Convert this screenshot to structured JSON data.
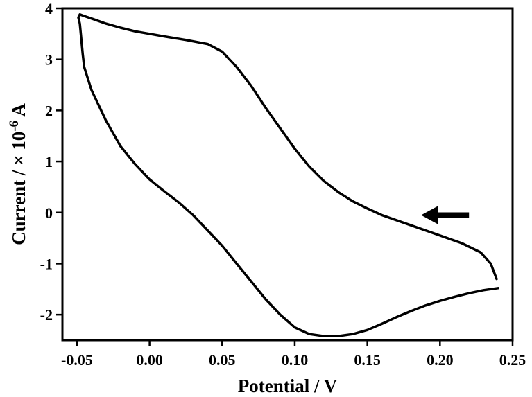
{
  "chart_data": {
    "type": "line",
    "xlabel": "Potential / V",
    "ylabel": {
      "prefix": "Current / × 10",
      "exponent": "-6",
      "suffix": " A"
    },
    "xlim": [
      -0.06,
      0.25
    ],
    "ylim": [
      -2.5,
      4
    ],
    "x_ticks": [
      -0.05,
      0.0,
      0.05,
      0.1,
      0.15,
      0.2,
      0.25
    ],
    "x_tick_labels": [
      "-0.05",
      "0.00",
      "0.05",
      "0.10",
      "0.15",
      "0.20",
      "0.25"
    ],
    "y_ticks": [
      -2,
      -1,
      0,
      1,
      2,
      3,
      4
    ],
    "y_tick_labels": [
      "-2",
      "-1",
      "0",
      "1",
      "2",
      "3",
      "4"
    ],
    "grid": false,
    "annotations": [
      {
        "type": "arrow",
        "direction": "left",
        "x_tail": 0.22,
        "x_head": 0.187,
        "y": -0.05
      }
    ],
    "series": [
      {
        "x": [
          0.239,
          0.235,
          0.228,
          0.215,
          0.2,
          0.18,
          0.16,
          0.15,
          0.14,
          0.13,
          0.12,
          0.11,
          0.1,
          0.09,
          0.08,
          0.07,
          0.06,
          0.05,
          0.04,
          0.025,
          0.01,
          0.0,
          -0.01,
          -0.02,
          -0.03,
          -0.04,
          -0.045,
          -0.048,
          -0.049,
          -0.048,
          -0.046,
          -0.045,
          -0.04,
          -0.03,
          -0.02,
          -0.01,
          0.0,
          0.01,
          0.02,
          0.03,
          0.04,
          0.05,
          0.06,
          0.07,
          0.08,
          0.09,
          0.1,
          0.11,
          0.12,
          0.13,
          0.14,
          0.15,
          0.16,
          0.17,
          0.18,
          0.19,
          0.2,
          0.21,
          0.22,
          0.23,
          0.24
        ],
        "y": [
          -1.3,
          -1.0,
          -0.78,
          -0.6,
          -0.45,
          -0.25,
          -0.05,
          0.08,
          0.22,
          0.4,
          0.62,
          0.9,
          1.25,
          1.65,
          2.05,
          2.48,
          2.85,
          3.15,
          3.3,
          3.38,
          3.45,
          3.5,
          3.55,
          3.62,
          3.7,
          3.8,
          3.85,
          3.88,
          3.82,
          3.7,
          3.1,
          2.85,
          2.4,
          1.8,
          1.3,
          0.95,
          0.65,
          0.42,
          0.2,
          -0.05,
          -0.35,
          -0.65,
          -1.0,
          -1.35,
          -1.7,
          -2.0,
          -2.25,
          -2.38,
          -2.42,
          -2.42,
          -2.38,
          -2.3,
          -2.18,
          -2.05,
          -1.93,
          -1.82,
          -1.73,
          -1.65,
          -1.58,
          -1.52,
          -1.48
        ]
      }
    ]
  }
}
